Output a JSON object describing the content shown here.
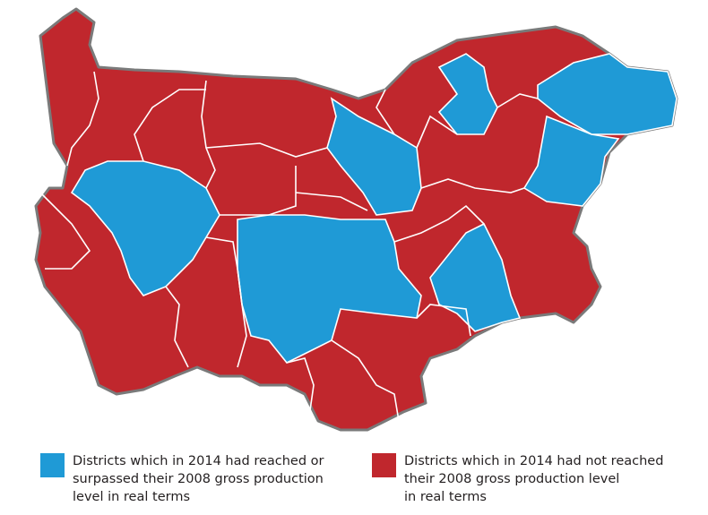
{
  "legend": {
    "items": [
      {
        "color": "#1f9ad6",
        "lines": [
          "Districts which in 2014 had reached or",
          "surpassed their 2008 gross production",
          "level in real terms"
        ]
      },
      {
        "color": "#c0272d",
        "lines": [
          "Districts which in 2014 had not reached",
          "their 2008 gross production level",
          "in real terms"
        ]
      }
    ]
  }
}
